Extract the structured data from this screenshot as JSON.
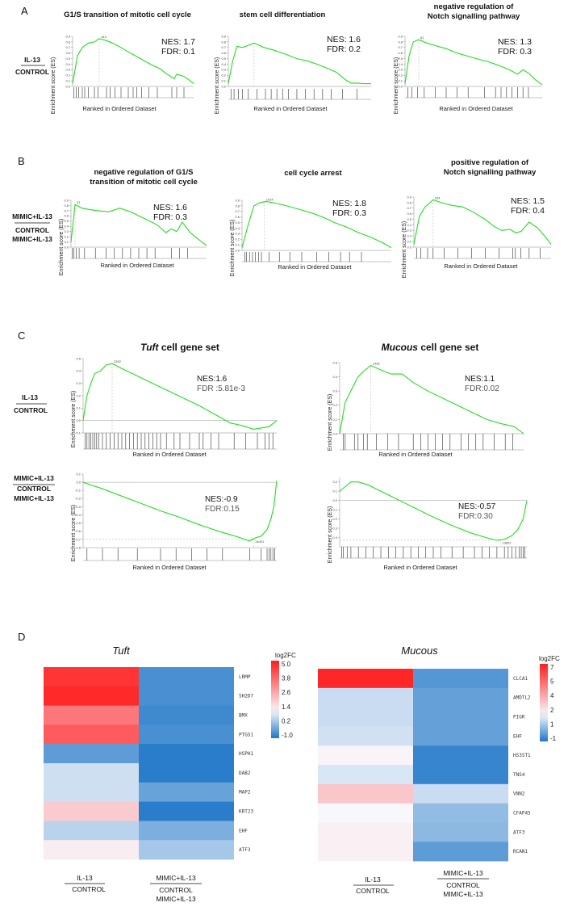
{
  "panels": {
    "a": "A",
    "b": "B",
    "c": "C",
    "d": "D"
  },
  "axis": {
    "ylabel": "Enrichment score (ES)",
    "xlabel": "Ranked in Ordered Dataset"
  },
  "conditions": {
    "il13": "IL-13",
    "control": "CONTROL",
    "mimic_il13": "MIMIC+IL-13"
  },
  "chart_data": [
    {
      "id": "A1",
      "type": "line",
      "panel": "A",
      "title": [
        "G1/S transition of mitotic cell cycle"
      ],
      "nes": "NES: 1.7",
      "fdr": "FDR: 0.1",
      "ylim": [
        0,
        0.9
      ],
      "yticks": [
        "0.9",
        "0.8",
        "0.7",
        "0.6",
        "0.5",
        "0.4",
        "0.3",
        "0.2",
        "0.1",
        "0.0"
      ],
      "peak_label": "143",
      "peak_x": 0.22,
      "x": [
        0,
        0.04,
        0.08,
        0.13,
        0.18,
        0.22,
        0.27,
        0.33,
        0.4,
        0.46,
        0.52,
        0.6,
        0.66,
        0.72,
        0.78,
        0.84,
        0.86,
        0.92,
        0.96,
        1.0
      ],
      "y": [
        0.05,
        0.55,
        0.7,
        0.78,
        0.8,
        0.86,
        0.83,
        0.78,
        0.7,
        0.62,
        0.55,
        0.45,
        0.38,
        0.32,
        0.22,
        0.14,
        0.22,
        0.18,
        0.12,
        0.05
      ],
      "hits": [
        0.01,
        0.03,
        0.05,
        0.08,
        0.1,
        0.13,
        0.18,
        0.21,
        0.28,
        0.31,
        0.35,
        0.4,
        0.46,
        0.5,
        0.53,
        0.57,
        0.63,
        0.7,
        0.82,
        0.86,
        0.92
      ]
    },
    {
      "id": "A2",
      "type": "line",
      "panel": "A",
      "title": [
        "stem cell differentiation"
      ],
      "nes": "NES: 1.6",
      "fdr": "FDR: 0.2",
      "ylim": [
        0,
        0.9
      ],
      "yticks": [
        "0.9",
        "0.8",
        "0.7",
        "0.6",
        "0.5",
        "0.4",
        "0.3",
        "0.2",
        "0.1",
        "0.0"
      ],
      "peak_label": "",
      "peak_x": 0.18,
      "x": [
        0,
        0.03,
        0.06,
        0.1,
        0.18,
        0.25,
        0.32,
        0.4,
        0.48,
        0.55,
        0.62,
        0.7,
        0.76,
        0.82,
        0.86,
        0.9,
        0.95,
        1.0
      ],
      "y": [
        0.05,
        0.45,
        0.72,
        0.7,
        0.78,
        0.7,
        0.65,
        0.58,
        0.5,
        0.46,
        0.4,
        0.32,
        0.25,
        0.12,
        0.06,
        0.06,
        0.05,
        0.05
      ],
      "hits": [
        0.02,
        0.04,
        0.07,
        0.1,
        0.14,
        0.2,
        0.26,
        0.3,
        0.34,
        0.38,
        0.42,
        0.48,
        0.54,
        0.6,
        0.66,
        0.72,
        0.8,
        0.9
      ]
    },
    {
      "id": "A3",
      "type": "line",
      "panel": "A",
      "title": [
        "negative regulation of",
        "Notch signalling pathway"
      ],
      "nes": "NES: 1.3",
      "fdr": "FDR: 0.3",
      "ylim": [
        0,
        0.9
      ],
      "yticks": [
        "0.9",
        "0.8",
        "0.7",
        "0.6",
        "0.5",
        "0.4",
        "0.3",
        "0.2",
        "0.1",
        "0.0"
      ],
      "peak_label": "81",
      "peak_x": 0.1,
      "x": [
        0,
        0.03,
        0.06,
        0.1,
        0.16,
        0.24,
        0.3,
        0.38,
        0.45,
        0.52,
        0.6,
        0.68,
        0.76,
        0.82,
        0.86,
        0.9,
        0.95,
        1.0
      ],
      "y": [
        0.05,
        0.55,
        0.8,
        0.84,
        0.78,
        0.72,
        0.68,
        0.6,
        0.55,
        0.5,
        0.45,
        0.38,
        0.3,
        0.22,
        0.3,
        0.24,
        0.12,
        0.03
      ],
      "hits": [
        0.02,
        0.05,
        0.09,
        0.14,
        0.22,
        0.3,
        0.38,
        0.46,
        0.58,
        0.66,
        0.7,
        0.74,
        0.78,
        0.82,
        0.86,
        0.9
      ]
    },
    {
      "id": "B1",
      "type": "line",
      "panel": "B",
      "title": [
        "negative regulation of G1/S",
        "transition of mitotic cell cycle"
      ],
      "nes": "NES: 1.6",
      "fdr": "FDR: 0.3",
      "ylim": [
        0,
        0.9
      ],
      "yticks": [
        "0.9",
        "0.8",
        "0.7",
        "0.6",
        "0.5",
        "0.4",
        "0.3",
        "0.2",
        "0.1",
        "0.0"
      ],
      "peak_label": "21",
      "peak_x": 0.03,
      "x": [
        0,
        0.03,
        0.08,
        0.14,
        0.2,
        0.28,
        0.36,
        0.44,
        0.5,
        0.58,
        0.64,
        0.7,
        0.74,
        0.78,
        0.82,
        0.88,
        0.94,
        1.0
      ],
      "y": [
        0.1,
        0.82,
        0.75,
        0.72,
        0.7,
        0.68,
        0.75,
        0.68,
        0.6,
        0.5,
        0.42,
        0.28,
        0.35,
        0.3,
        0.48,
        0.28,
        0.15,
        0.03
      ],
      "hits": [
        0.01,
        0.02,
        0.04,
        0.06,
        0.1,
        0.18,
        0.26,
        0.32,
        0.38,
        0.44,
        0.5,
        0.56,
        0.62,
        0.74,
        0.8,
        0.86
      ]
    },
    {
      "id": "B2",
      "type": "line",
      "panel": "B",
      "title": [
        "cell cycle arrest"
      ],
      "nes": "NES: 1.8",
      "fdr": "FDR: 0.3",
      "ylim": [
        0,
        0.9
      ],
      "yticks": [
        "0.9",
        "0.8",
        "0.7",
        "0.6",
        "0.5",
        "0.4",
        "0.3",
        "0.2",
        "0.1",
        "0.0"
      ],
      "peak_label": "1024",
      "peak_x": 0.15,
      "x": [
        0,
        0.04,
        0.08,
        0.12,
        0.16,
        0.22,
        0.3,
        0.38,
        0.46,
        0.54,
        0.62,
        0.7,
        0.78,
        0.86,
        0.94,
        1.0
      ],
      "y": [
        0.05,
        0.45,
        0.8,
        0.86,
        0.88,
        0.85,
        0.8,
        0.74,
        0.68,
        0.6,
        0.5,
        0.42,
        0.32,
        0.24,
        0.14,
        0.05
      ],
      "hits": [
        0.02,
        0.03,
        0.05,
        0.07,
        0.09,
        0.11,
        0.13,
        0.18,
        0.25,
        0.32,
        0.4,
        0.5,
        0.58,
        0.66,
        0.72,
        0.8
      ]
    },
    {
      "id": "B3",
      "type": "line",
      "panel": "B",
      "title": [
        "positive regulation of",
        "Notch signalling pathway"
      ],
      "nes": "NES: 1.5",
      "fdr": "FDR: 0.4",
      "ylim": [
        0,
        0.9
      ],
      "yticks": [
        "0.9",
        "0.8",
        "0.7",
        "0.6",
        "0.5",
        "0.4",
        "0.3",
        "0.2",
        "0.1",
        "0.0"
      ],
      "peak_label": "154",
      "peak_x": 0.14,
      "x": [
        0,
        0.04,
        0.08,
        0.14,
        0.2,
        0.28,
        0.36,
        0.44,
        0.52,
        0.58,
        0.64,
        0.7,
        0.74,
        0.78,
        0.84,
        0.9,
        0.96,
        1.0
      ],
      "y": [
        0.05,
        0.55,
        0.72,
        0.85,
        0.8,
        0.75,
        0.72,
        0.62,
        0.5,
        0.38,
        0.3,
        0.32,
        0.26,
        0.28,
        0.45,
        0.35,
        0.18,
        0.05
      ],
      "hits": [
        0.02,
        0.05,
        0.1,
        0.14,
        0.22,
        0.32,
        0.42,
        0.52,
        0.62,
        0.72,
        0.74,
        0.78,
        0.84,
        0.92
      ]
    },
    {
      "id": "C1",
      "type": "line",
      "panel": "C",
      "title_italic": "Tuft",
      "title_rest": " cell gene set",
      "nes": "NES:1.6",
      "fdr": "FDR :5.81e-3",
      "ylim": [
        -0.1,
        0.5
      ],
      "yticks": [
        "0.5",
        "0.4",
        "0.3",
        "0.2",
        "0.1",
        "0.0",
        "-0.1"
      ],
      "peak_label": "2392",
      "peak_x": 0.15,
      "x": [
        0,
        0.02,
        0.04,
        0.06,
        0.09,
        0.12,
        0.15,
        0.2,
        0.28,
        0.36,
        0.44,
        0.52,
        0.6,
        0.68,
        0.76,
        0.82,
        0.88,
        0.92,
        0.96,
        1.0
      ],
      "y": [
        0.0,
        0.2,
        0.3,
        0.38,
        0.4,
        0.45,
        0.46,
        0.42,
        0.36,
        0.3,
        0.24,
        0.18,
        0.12,
        0.05,
        -0.02,
        -0.04,
        -0.07,
        -0.06,
        -0.05,
        0.0
      ],
      "hits": [
        0.01,
        0.02,
        0.03,
        0.04,
        0.05,
        0.06,
        0.07,
        0.08,
        0.1,
        0.12,
        0.14,
        0.16,
        0.18,
        0.2,
        0.22,
        0.24,
        0.26,
        0.28,
        0.3,
        0.32,
        0.34,
        0.36,
        0.38,
        0.4,
        0.43,
        0.47,
        0.5,
        0.55,
        0.6,
        0.62,
        0.66,
        0.7,
        0.78,
        0.84,
        0.9,
        0.94,
        0.96,
        0.98
      ]
    },
    {
      "id": "C2",
      "type": "line",
      "panel": "C",
      "title_italic": "Mucous",
      "title_rest": " cell  gene set",
      "nes": "NES:1.1",
      "fdr": "FDR:0.02",
      "ylim": [
        0,
        0.5
      ],
      "yticks": [
        "0.5",
        "0.4",
        "0.3",
        "0.2",
        "0.1",
        "0.0"
      ],
      "peak_label": "1425",
      "peak_x": 0.17,
      "x": [
        0,
        0.03,
        0.06,
        0.1,
        0.13,
        0.17,
        0.22,
        0.28,
        0.34,
        0.4,
        0.48,
        0.56,
        0.64,
        0.72,
        0.8,
        0.88,
        0.95,
        1.0
      ],
      "y": [
        0.0,
        0.22,
        0.3,
        0.4,
        0.44,
        0.48,
        0.45,
        0.42,
        0.42,
        0.36,
        0.3,
        0.25,
        0.2,
        0.15,
        0.1,
        0.07,
        0.05,
        0.0
      ],
      "hits": [
        0.02,
        0.03,
        0.08,
        0.1,
        0.13,
        0.15,
        0.2,
        0.26,
        0.32,
        0.4,
        0.44,
        0.48,
        0.52,
        0.56,
        0.6,
        0.66,
        0.7,
        0.74,
        0.78,
        0.84,
        0.9,
        0.94
      ]
    },
    {
      "id": "C3",
      "type": "line",
      "panel": "C",
      "title_italic": "",
      "title_rest": "",
      "nes": "NES:-0.9",
      "fdr": "FDR:0.15",
      "ylim": [
        -0.8,
        0.1
      ],
      "yticks": [
        "0.1",
        "0.0",
        "-0.1",
        "-0.2",
        "-0.3",
        "-0.4",
        "-0.5",
        "-0.6",
        "-0.7",
        "-0.8"
      ],
      "peak_label": "14001",
      "peak_x": 0.88,
      "x": [
        0,
        0.1,
        0.2,
        0.3,
        0.4,
        0.5,
        0.6,
        0.7,
        0.8,
        0.86,
        0.89,
        0.92,
        0.95,
        0.97,
        0.985,
        1.0
      ],
      "y": [
        0.0,
        -0.08,
        -0.17,
        -0.26,
        -0.35,
        -0.43,
        -0.52,
        -0.6,
        -0.67,
        -0.72,
        -0.68,
        -0.66,
        -0.58,
        -0.45,
        -0.3,
        0.02
      ],
      "hits": [
        0.02,
        0.1,
        0.18,
        0.28,
        0.4,
        0.48,
        0.56,
        0.64,
        0.72,
        0.86,
        0.92,
        0.95,
        0.96,
        0.97,
        0.98,
        0.99
      ]
    },
    {
      "id": "C4",
      "type": "line",
      "panel": "C",
      "title_italic": "",
      "title_rest": "",
      "nes": "NES:-0.57",
      "fdr": "FDR:0.30",
      "ylim": [
        -0.5,
        0.25
      ],
      "yticks": [
        "0.2",
        "0.1",
        "0.0",
        "-0.1",
        "-0.2",
        "-0.3",
        "-0.4"
      ],
      "peak_label": "13851",
      "peak_x": 0.86,
      "x": [
        0,
        0.03,
        0.06,
        0.1,
        0.15,
        0.2,
        0.3,
        0.4,
        0.5,
        0.6,
        0.7,
        0.78,
        0.84,
        0.88,
        0.92,
        0.95,
        0.98,
        1.0
      ],
      "y": [
        0.1,
        0.15,
        0.2,
        0.2,
        0.17,
        0.12,
        0.02,
        -0.08,
        -0.18,
        -0.27,
        -0.35,
        -0.4,
        -0.43,
        -0.42,
        -0.38,
        -0.32,
        -0.2,
        0.0
      ],
      "hits": [
        0.01,
        0.02,
        0.04,
        0.06,
        0.1,
        0.14,
        0.18,
        0.22,
        0.26,
        0.3,
        0.34,
        0.38,
        0.42,
        0.46,
        0.5,
        0.54,
        0.6,
        0.66,
        0.72,
        0.76,
        0.8,
        0.84,
        0.88,
        0.9,
        0.92,
        0.94,
        0.96,
        0.97,
        0.98,
        0.99
      ]
    },
    {
      "id": "D1",
      "type": "heatmap",
      "panel": "D",
      "title": "Tuft",
      "legend_title": "log2FC",
      "legend_ticks": [
        "5.0",
        "3.8",
        "2.6",
        "1.4",
        "0.2",
        "-1.0"
      ],
      "vmin": -1.0,
      "vmax": 5.0,
      "genes": [
        "LRMP",
        "SH2D7",
        "BMX",
        "PTGS1",
        "HSPH1",
        "DAB2",
        "MAP2",
        "KRT23",
        "EHF",
        "ATF3"
      ],
      "columns": [
        "IL-13/CONTROL",
        "MIMIC+IL-13/CONTROL MIMIC+IL-13"
      ],
      "values": [
        [
          4.6,
          -0.6
        ],
        [
          4.8,
          -0.6
        ],
        [
          3.4,
          -0.7
        ],
        [
          3.9,
          -0.6
        ],
        [
          -0.4,
          -0.9
        ],
        [
          0.7,
          -0.9
        ],
        [
          0.7,
          -0.3
        ],
        [
          1.9,
          -0.9
        ],
        [
          0.5,
          -0.1
        ],
        [
          1.3,
          0.3
        ]
      ]
    },
    {
      "id": "D2",
      "type": "heatmap",
      "panel": "D",
      "title": "Mucous",
      "legend_title": "log2FC",
      "legend_ticks": [
        "7",
        "5",
        "4",
        "2",
        "1",
        "-1"
      ],
      "vmin": -1,
      "vmax": 7,
      "genes": [
        "CLCA1",
        "AMDTL2",
        "PIGR",
        "EHF",
        "HS3ST1",
        "TNS4",
        "VNN2",
        "CFAP45",
        "ATF3",
        "RCAN1"
      ],
      "columns": [
        "IL-13/CONTROL",
        "MIMIC+IL-13/CONTROL MIMIC+IL-13"
      ],
      "values": [
        [
          6.8,
          -0.3
        ],
        [
          1.2,
          -0.1
        ],
        [
          1.2,
          -0.1
        ],
        [
          1.3,
          -0.1
        ],
        [
          1.9,
          -0.7
        ],
        [
          1.4,
          -0.7
        ],
        [
          3.0,
          1.2
        ],
        [
          1.8,
          0.5
        ],
        [
          2.0,
          0.4
        ],
        [
          2.0,
          -0.2
        ]
      ]
    }
  ]
}
